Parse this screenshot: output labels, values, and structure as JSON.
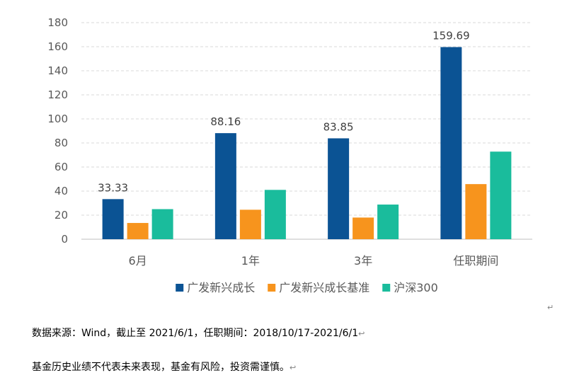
{
  "chart_data": {
    "type": "bar",
    "categories": [
      "6月",
      "1年",
      "3年",
      "任职期间"
    ],
    "series": [
      {
        "name": "广发新兴成长",
        "values": [
          33.33,
          88.16,
          83.85,
          159.69
        ],
        "color": "#0B5394",
        "labels": [
          "33.33",
          "88.16",
          "83.85",
          "159.69"
        ]
      },
      {
        "name": "广发新兴成长基准",
        "values": [
          13.5,
          24.5,
          18.0,
          45.8
        ],
        "color": "#F7941D"
      },
      {
        "name": "沪深300",
        "values": [
          25.0,
          41.0,
          28.8,
          72.8
        ],
        "color": "#1ABC9C"
      }
    ],
    "ylim": [
      0,
      180
    ],
    "yticks": [
      0,
      20,
      40,
      60,
      80,
      100,
      120,
      140,
      160,
      180
    ],
    "grid": true,
    "legend": "bottom",
    "title": "",
    "xlabel": "",
    "ylabel": ""
  },
  "notes": {
    "source": "数据来源：Wind，截止至 2021/6/1，任职期间：2018/10/17-2021/6/1",
    "disclaimer": "基金历史业绩不代表未来表现，基金有风险，投资需谨慎。",
    "para_mark": "↵",
    "small_mark": "↩"
  }
}
